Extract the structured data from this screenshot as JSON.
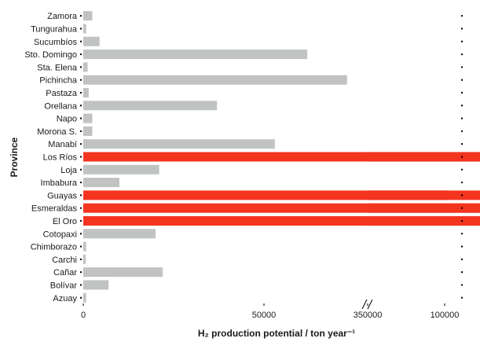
{
  "chart_data": {
    "type": "bar",
    "orientation": "horizontal",
    "categories": [
      "Zamora",
      "Tungurahua",
      "Sucumbíos",
      "Sto. Domingo",
      "Sta. Elena",
      "Pichincha",
      "Pastaza",
      "Orellana",
      "Napo",
      "Morona S.",
      "Manabí",
      "Los Ríos",
      "Loja",
      "Imbabura",
      "Guayas",
      "Esmeraldas",
      "El Oro",
      "Cotopaxi",
      "Chimborazo",
      "Carchi",
      "Cañar",
      "Bolívar",
      "Azuay"
    ],
    "values": [
      2500,
      800,
      4500,
      62000,
      1200,
      73000,
      1500,
      37000,
      2500,
      2500,
      53000,
      391000,
      21000,
      10000,
      372000,
      385000,
      340000,
      20000,
      800,
      700,
      22000,
      7000,
      800
    ],
    "highlight": [
      "Los Ríos",
      "Guayas",
      "Esmeraldas",
      "El Oro"
    ],
    "colors": {
      "default": "#c0c3c2",
      "highlight": "#f3341f"
    },
    "xlabel": "H₂ production potential / ton year⁻¹",
    "ylabel": "Province",
    "x_ticks": [
      "0",
      "50000",
      "100000",
      "350000",
      "400000"
    ],
    "x_tick_values": [
      0,
      50000,
      100000,
      350000,
      400000
    ],
    "axis_break": [
      140000,
      350000
    ],
    "xlim": [
      0,
      400000
    ],
    "grid": false
  }
}
